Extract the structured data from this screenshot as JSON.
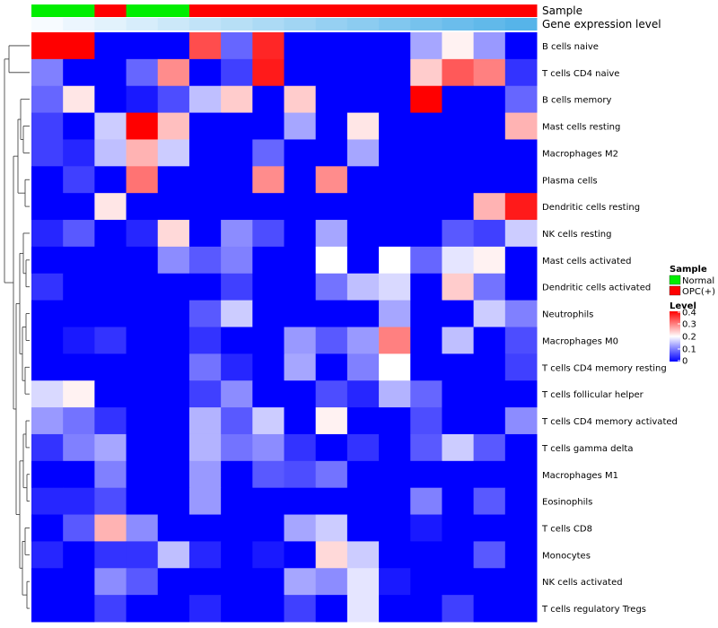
{
  "chart_data": {
    "type": "heatmap",
    "annotation_labels": [
      "Sample",
      "Gene expression level"
    ],
    "rows": [
      "B cells naive",
      "T cells CD4 naive",
      "B cells memory",
      "Mast cells resting",
      "Macrophages M2",
      "Plasma cells",
      "Dendritic cells resting",
      "NK cells resting",
      "Mast cells activated",
      "Dendritic cells activated",
      "Neutrophils",
      "Macrophages M0",
      "T cells CD4 memory resting",
      "T cells follicular helper",
      "T cells CD4 memory activated",
      "T cells gamma delta",
      "Macrophages M1",
      "Eosinophils",
      "T cells CD8",
      "Monocytes",
      "NK cells activated",
      "T cells regulatory  Tregs"
    ],
    "sample_groups": [
      "Normal",
      "Normal",
      "OPC(+)",
      "Normal",
      "Normal",
      "OPC(+)",
      "OPC(+)",
      "OPC(+)",
      "OPC(+)",
      "OPC(+)",
      "OPC(+)",
      "OPC(+)",
      "OPC(+)",
      "OPC(+)",
      "OPC(+)",
      "OPC(+)"
    ],
    "expression_level": [
      0.0,
      0.067,
      0.133,
      0.2,
      0.267,
      0.333,
      0.4,
      0.467,
      0.533,
      0.6,
      0.667,
      0.733,
      0.8,
      0.867,
      0.933,
      1.0
    ],
    "values": [
      [
        0.4,
        0.4,
        0.0,
        0.0,
        0.0,
        0.34,
        0.08,
        0.37,
        0.0,
        0.0,
        0.0,
        0.0,
        0.13,
        0.21,
        0.12,
        0.0
      ],
      [
        0.1,
        0.0,
        0.0,
        0.08,
        0.29,
        0.0,
        0.05,
        0.38,
        0.0,
        0.0,
        0.0,
        0.0,
        0.24,
        0.33,
        0.3,
        0.04
      ],
      [
        0.08,
        0.22,
        0.0,
        0.02,
        0.06,
        0.15,
        0.24,
        0.0,
        0.24,
        0.0,
        0.0,
        0.0,
        0.4,
        0.0,
        0.0,
        0.08
      ],
      [
        0.05,
        0.0,
        0.16,
        0.4,
        0.25,
        0.0,
        0.0,
        0.0,
        0.13,
        0.0,
        0.22,
        0.0,
        0.0,
        0.0,
        0.0,
        0.26
      ],
      [
        0.05,
        0.03,
        0.15,
        0.26,
        0.16,
        0.0,
        0.0,
        0.08,
        0.0,
        0.0,
        0.13,
        0.0,
        0.0,
        0.0,
        0.0,
        0.0
      ],
      [
        0.0,
        0.05,
        0.0,
        0.31,
        0.0,
        0.0,
        0.0,
        0.29,
        0.0,
        0.29,
        0.0,
        0.0,
        0.0,
        0.0,
        0.0,
        0.0
      ],
      [
        0.0,
        0.0,
        0.22,
        0.0,
        0.0,
        0.0,
        0.0,
        0.0,
        0.0,
        0.0,
        0.0,
        0.0,
        0.0,
        0.0,
        0.26,
        0.38
      ],
      [
        0.03,
        0.07,
        0.0,
        0.03,
        0.23,
        0.0,
        0.11,
        0.06,
        0.0,
        0.13,
        0.0,
        0.0,
        0.0,
        0.07,
        0.05,
        0.16
      ],
      [
        0.0,
        0.0,
        0.0,
        0.0,
        0.11,
        0.07,
        0.1,
        0.0,
        0.0,
        0.2,
        0.0,
        0.2,
        0.08,
        0.18,
        0.21,
        0.0
      ],
      [
        0.04,
        0.0,
        0.0,
        0.0,
        0.0,
        0.0,
        0.05,
        0.0,
        0.0,
        0.09,
        0.15,
        0.17,
        0.0,
        0.24,
        0.09,
        0.0
      ],
      [
        0.0,
        0.0,
        0.0,
        0.0,
        0.0,
        0.07,
        0.16,
        0.0,
        0.0,
        0.0,
        0.0,
        0.13,
        0.0,
        0.0,
        0.16,
        0.1
      ],
      [
        0.0,
        0.02,
        0.04,
        0.0,
        0.0,
        0.04,
        0.0,
        0.0,
        0.12,
        0.07,
        0.12,
        0.3,
        0.0,
        0.15,
        0.0,
        0.06
      ],
      [
        0.0,
        0.0,
        0.0,
        0.0,
        0.0,
        0.09,
        0.03,
        0.0,
        0.13,
        0.0,
        0.1,
        0.2,
        0.0,
        0.0,
        0.0,
        0.05
      ],
      [
        0.17,
        0.21,
        0.0,
        0.0,
        0.0,
        0.05,
        0.11,
        0.0,
        0.0,
        0.06,
        0.03,
        0.14,
        0.08,
        0.0,
        0.0,
        0.0
      ],
      [
        0.12,
        0.09,
        0.04,
        0.0,
        0.0,
        0.14,
        0.07,
        0.16,
        0.0,
        0.21,
        0.0,
        0.0,
        0.06,
        0.0,
        0.0,
        0.11
      ],
      [
        0.04,
        0.1,
        0.13,
        0.0,
        0.0,
        0.14,
        0.09,
        0.11,
        0.04,
        0.0,
        0.04,
        0.0,
        0.07,
        0.16,
        0.07,
        0.0
      ],
      [
        0.0,
        0.0,
        0.1,
        0.0,
        0.0,
        0.12,
        0.0,
        0.07,
        0.06,
        0.09,
        0.0,
        0.0,
        0.0,
        0.0,
        0.0,
        0.0
      ],
      [
        0.03,
        0.03,
        0.06,
        0.0,
        0.0,
        0.12,
        0.0,
        0.0,
        0.0,
        0.0,
        0.0,
        0.0,
        0.1,
        0.0,
        0.07,
        0.0
      ],
      [
        0.0,
        0.07,
        0.26,
        0.11,
        0.0,
        0.0,
        0.0,
        0.0,
        0.13,
        0.16,
        0.0,
        0.0,
        0.02,
        0.0,
        0.0,
        0.0
      ],
      [
        0.03,
        0.0,
        0.04,
        0.04,
        0.15,
        0.03,
        0.0,
        0.02,
        0.0,
        0.23,
        0.16,
        0.0,
        0.0,
        0.0,
        0.07,
        0.0
      ],
      [
        0.0,
        0.0,
        0.11,
        0.07,
        0.0,
        0.0,
        0.0,
        0.0,
        0.13,
        0.11,
        0.18,
        0.02,
        0.0,
        0.0,
        0.0,
        0.0
      ],
      [
        0.0,
        0.0,
        0.05,
        0.0,
        0.0,
        0.03,
        0.0,
        0.0,
        0.05,
        0.0,
        0.18,
        0.0,
        0.0,
        0.05,
        0.0,
        0.0
      ]
    ],
    "legend": {
      "sample": {
        "title": "Sample",
        "entries": [
          {
            "label": "Normal",
            "color": "#00ee00"
          },
          {
            "label": "OPC(+)",
            "color": "#ff0000"
          }
        ]
      },
      "level": {
        "title": "Level",
        "ticks": [
          "0.4",
          "0.3",
          "0.2",
          "0.1",
          "0"
        ],
        "tick_values": [
          0.4,
          0.3,
          0.2,
          0.1,
          0.0
        ]
      }
    },
    "colors": {
      "low": "#0000ff",
      "mid": "#ffffff",
      "high": "#ff0000",
      "expr_low": "#f7fbff",
      "expr_high": "#56b4e9",
      "normal": "#00ee00",
      "opc": "#ff0000"
    },
    "range": [
      0,
      0.4
    ],
    "legend_placement": "right"
  }
}
